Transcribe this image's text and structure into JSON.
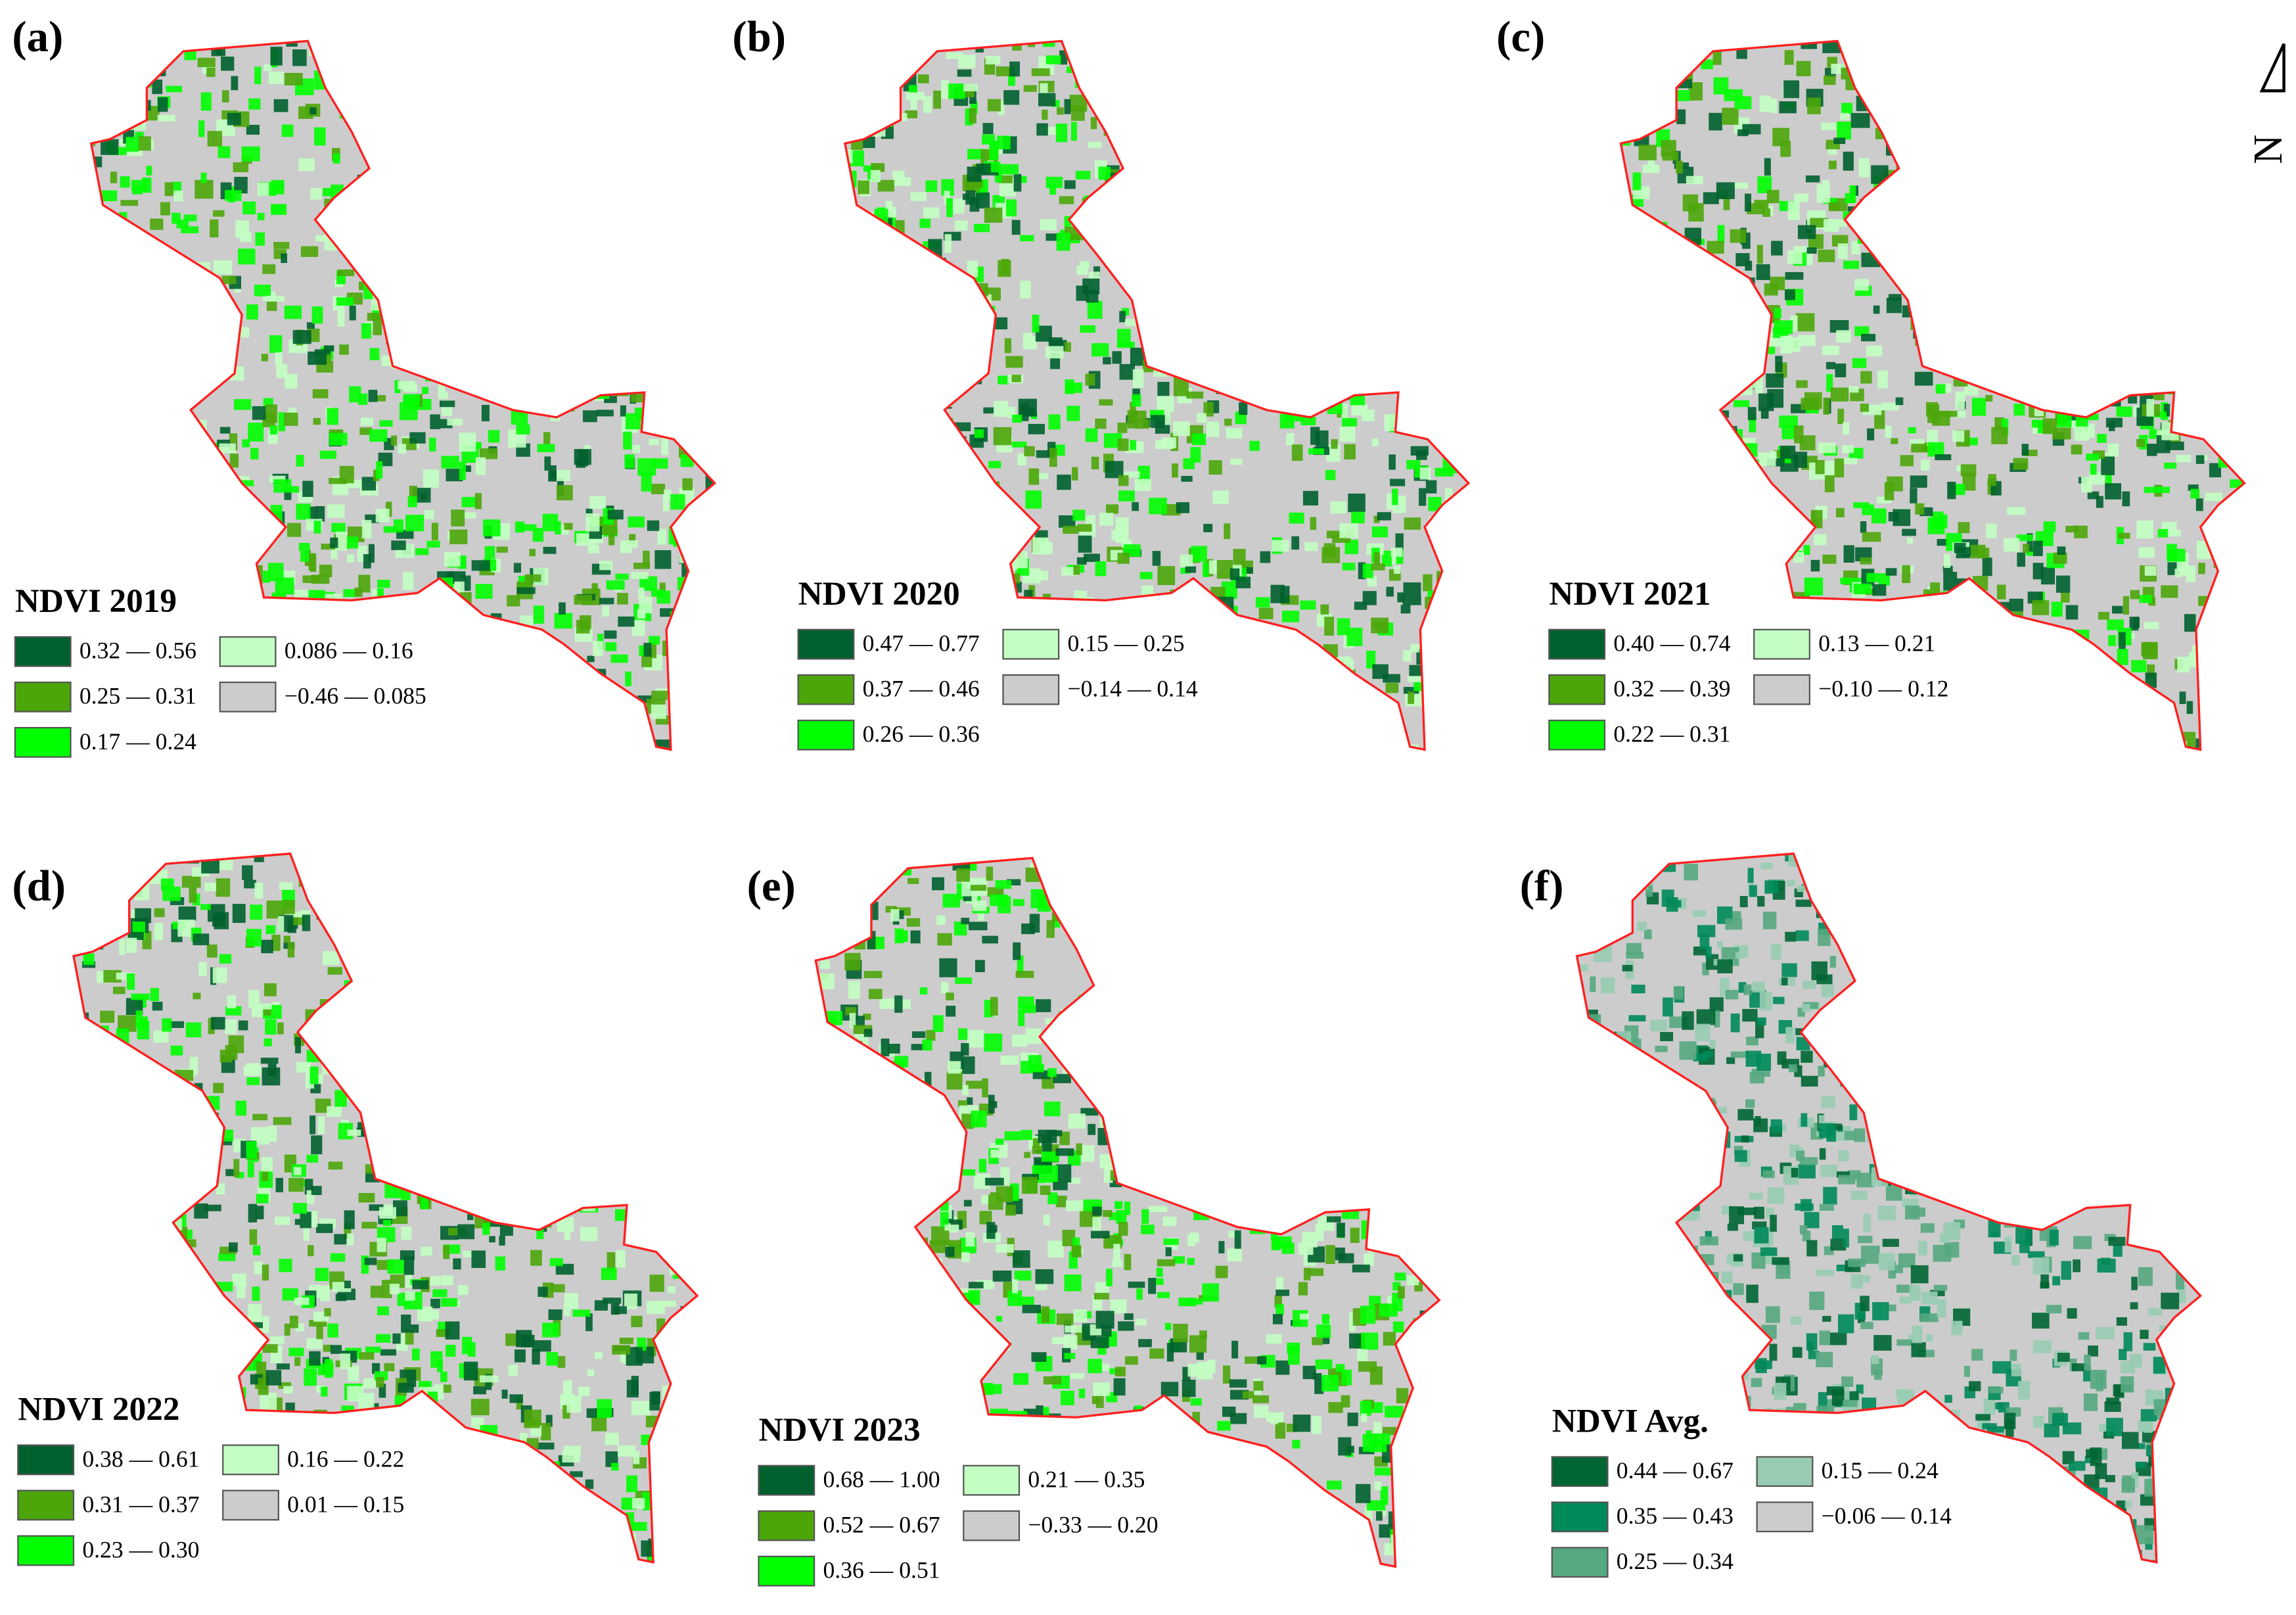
{
  "north_label": "N",
  "panels": [
    {
      "label": "(a)",
      "title": "NDVI 2019",
      "legend": [
        {
          "label": "0.32 — 0.56",
          "color": "#00612e"
        },
        {
          "label": "0.25 — 0.31",
          "color": "#4ca60a"
        },
        {
          "label": "0.17 — 0.24",
          "color": "#00ff00"
        },
        {
          "label": "0.086 — 0.16",
          "color": "#c3ffc3"
        },
        {
          "label": "−0.46 — 0.085",
          "color": "#cccccc"
        }
      ]
    },
    {
      "label": "(b)",
      "title": "NDVI 2020",
      "legend": [
        {
          "label": "0.47 — 0.77",
          "color": "#00612e"
        },
        {
          "label": "0.37 — 0.46",
          "color": "#4ca60a"
        },
        {
          "label": "0.26 — 0.36",
          "color": "#00ff00"
        },
        {
          "label": "0.15 — 0.25",
          "color": "#c3ffc3"
        },
        {
          "label": "−0.14 — 0.14",
          "color": "#cccccc"
        }
      ]
    },
    {
      "label": "(c)",
      "title": "NDVI 2021",
      "legend": [
        {
          "label": "0.40 — 0.74",
          "color": "#00612e"
        },
        {
          "label": "0.32 — 0.39",
          "color": "#4ca60a"
        },
        {
          "label": "0.22 — 0.31",
          "color": "#00ff00"
        },
        {
          "label": "0.13 — 0.21",
          "color": "#c3ffc3"
        },
        {
          "label": "−0.10 — 0.12",
          "color": "#cccccc"
        }
      ]
    },
    {
      "label": "(d)",
      "title": "NDVI 2022",
      "legend": [
        {
          "label": "0.38 — 0.61",
          "color": "#00612e"
        },
        {
          "label": "0.31 — 0.37",
          "color": "#4ca60a"
        },
        {
          "label": "0.23 — 0.30",
          "color": "#00ff00"
        },
        {
          "label": "0.16 — 0.22",
          "color": "#c3ffc3"
        },
        {
          "label": "0.01 — 0.15",
          "color": "#cccccc"
        }
      ]
    },
    {
      "label": "(e)",
      "title": "NDVI 2023",
      "legend": [
        {
          "label": "0.68 — 1.00",
          "color": "#00612e"
        },
        {
          "label": "0.52 — 0.67",
          "color": "#4ca60a"
        },
        {
          "label": "0.36 — 0.51",
          "color": "#00ff00"
        },
        {
          "label": "0.21 — 0.35",
          "color": "#c3ffc3"
        },
        {
          "label": "−0.33 — 0.20",
          "color": "#cccccc"
        }
      ]
    },
    {
      "label": "(f)",
      "title": "NDVI Avg.",
      "legend": [
        {
          "label": "0.44 — 0.67",
          "color": "#006633"
        },
        {
          "label": "0.35 — 0.43",
          "color": "#008a5a"
        },
        {
          "label": "0.25 — 0.34",
          "color": "#55a880"
        },
        {
          "label": "0.15 — 0.24",
          "color": "#98ccb2"
        },
        {
          "label": "−0.06 — 0.14",
          "color": "#cccccc"
        }
      ]
    }
  ]
}
